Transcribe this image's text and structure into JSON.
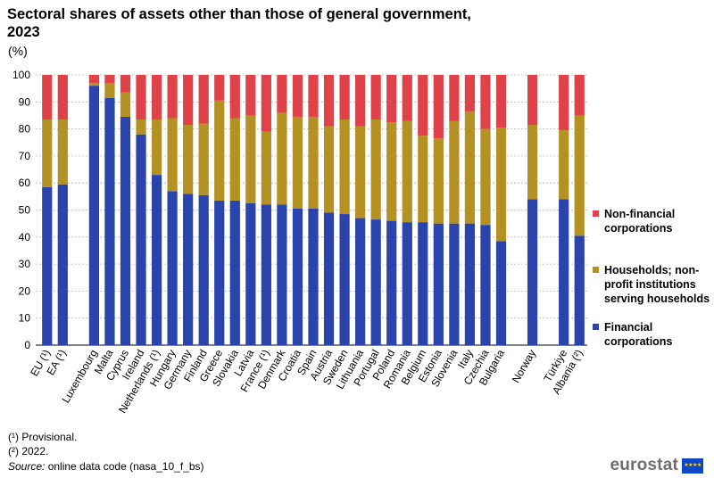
{
  "header": {
    "title": "Sectoral shares of assets other than those of general government, 2023",
    "unit": "(%)"
  },
  "chart_data": {
    "type": "bar",
    "stacked": true,
    "title": "Sectoral shares of assets other than those of general government, 2023",
    "ylabel": "(%)",
    "ylim": [
      0,
      100
    ],
    "yticks": [
      0,
      10,
      20,
      30,
      40,
      50,
      60,
      70,
      80,
      90,
      100
    ],
    "grid": true,
    "legend_position": "right",
    "categories": [
      "EU (¹)",
      "EA (¹)",
      "",
      "Luxembourg",
      "Malta",
      "Cyprus",
      "Ireland",
      "Netherlands (¹)",
      "Hungary",
      "Germany",
      "Finland",
      "Greece",
      "Slovakia",
      "Latvia",
      "France (¹)",
      "Denmark",
      "Croatia",
      "Spain",
      "Austria",
      "Sweden",
      "Lithuania",
      "Portugal",
      "Poland",
      "Romania",
      "Belgium",
      "Estonia",
      "Slovenia",
      "Italy",
      "Czechia",
      "Bulgaria",
      "",
      "Norway",
      "",
      "Türkiye",
      "Albania (²)"
    ],
    "series": [
      {
        "name": "Financial corporations",
        "color": "#2a44ab",
        "values": [
          58.5,
          59.5,
          null,
          96,
          91.5,
          84.5,
          78,
          63,
          57,
          56,
          55.5,
          53.5,
          53.5,
          52.5,
          52,
          52,
          50.5,
          50.5,
          49,
          48.5,
          47,
          46.5,
          46,
          45.5,
          45.5,
          45,
          45,
          45,
          44.5,
          38.5,
          null,
          54,
          null,
          54,
          40.5
        ]
      },
      {
        "name": "Households; non-profit institutions serving households",
        "color": "#b39223",
        "values": [
          25,
          24,
          null,
          1,
          5.5,
          9,
          5.5,
          20.5,
          27,
          25.5,
          26.5,
          37,
          30.5,
          32.5,
          27,
          34,
          34,
          34,
          32,
          35,
          34,
          37,
          36.5,
          37.5,
          32,
          31.5,
          38,
          41.5,
          35.5,
          42,
          null,
          27.5,
          null,
          25.5,
          44.5
        ]
      },
      {
        "name": "Non-financial corporations",
        "color": "#e0424a",
        "values": [
          16.5,
          16.5,
          null,
          3,
          3,
          6.5,
          16.5,
          16.5,
          16,
          18.5,
          18,
          9.5,
          16,
          15,
          21,
          14,
          15.5,
          15.5,
          19,
          16.5,
          19,
          16.5,
          17.5,
          17,
          22.5,
          23.5,
          17,
          13.5,
          20,
          19.5,
          null,
          18.5,
          null,
          20.5,
          15
        ]
      }
    ],
    "legend": [
      "Non-financial corporations",
      "Households; non-profit institutions serving households",
      "Financial corporations"
    ]
  },
  "legend": {
    "items": [
      {
        "lines": [
          "Non-financial",
          "corporations"
        ],
        "color": "#e0424a"
      },
      {
        "lines": [
          "Households; non-",
          "profit institutions",
          "serving households"
        ],
        "color": "#b39223"
      },
      {
        "lines": [
          "Financial",
          "corporations"
        ],
        "color": "#2a44ab"
      }
    ]
  },
  "footnotes": {
    "note1": "(¹) Provisional.",
    "note2": "(²) 2022.",
    "source_label": "Source:",
    "source_text": "online data code (nasa_10_f_bs)"
  },
  "branding": {
    "logo_text": "eurostat",
    "flag_icon": "eu-flag-icon"
  }
}
